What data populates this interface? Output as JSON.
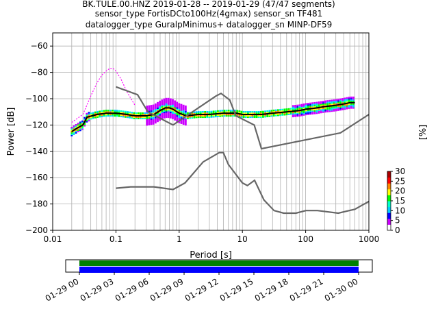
{
  "title": {
    "line1": "BK.TULE.00.HNZ   2019-01-28 -- 2019-01-29  (47/47 segments)",
    "line2": "sensor_type FortisDCto100Hz(4gmax) sensor_sn TF481",
    "line3": "datalogger_type GuralpMinimus+ datalogger_sn MINP-DF59"
  },
  "colorbar": {
    "label": "[%]",
    "ticks": [
      "0",
      "5",
      "10",
      "15",
      "20",
      "25",
      "30"
    ],
    "range": [
      0,
      30
    ],
    "colormap": [
      "#ffffff",
      "#cc00ff",
      "#0000ff",
      "#00ccff",
      "#00ffcc",
      "#00ff00",
      "#ffff00",
      "#ff8800",
      "#ff0000",
      "#aa0000"
    ]
  },
  "chart_data": [
    {
      "type": "line",
      "xlabel": "Period [s]",
      "ylabel": "Power [dB]",
      "xscale": "log",
      "xlim": [
        0.01,
        1000
      ],
      "ylim": [
        -200,
        -50
      ],
      "xticks": [
        "0.01",
        "0.1",
        "1",
        "10",
        "100",
        "1000"
      ],
      "yticks": [
        "−60",
        "−80",
        "−100",
        "−120",
        "−140",
        "−160",
        "−180",
        "−200"
      ],
      "grid": true,
      "series": [
        {
          "role": "mean",
          "color": "#000000",
          "x": [
            0.02,
            0.025,
            0.03,
            0.035,
            0.05,
            0.07,
            0.1,
            0.15,
            0.2,
            0.3,
            0.4,
            0.5,
            0.6,
            0.7,
            0.8,
            1.0,
            1.3,
            2,
            3,
            5,
            8,
            10,
            15,
            20,
            30,
            50,
            80,
            100,
            150,
            200,
            300,
            400,
            500,
            600
          ],
          "y": [
            -125,
            -122,
            -120,
            -114,
            -112,
            -111,
            -111,
            -112,
            -113,
            -113,
            -112,
            -109,
            -107,
            -107,
            -108,
            -111,
            -113,
            -112,
            -112,
            -111,
            -111,
            -112,
            -112,
            -112,
            -111,
            -110,
            -109,
            -108,
            -107,
            -106,
            -105,
            -104,
            -103,
            -103
          ]
        },
        {
          "role": "peak-envelope",
          "color": "#ff00ff",
          "x": [
            0.02,
            0.03,
            0.04,
            0.05,
            0.06,
            0.07,
            0.08,
            0.09,
            0.1,
            0.12,
            0.15,
            0.2
          ],
          "y": [
            -118,
            -112,
            -98,
            -88,
            -82,
            -79,
            -77,
            -77,
            -79,
            -85,
            -95,
            -105
          ]
        },
        {
          "role": "nhnm",
          "color": "#666666",
          "x": [
            0.1,
            0.22,
            0.32,
            0.8,
            3.8,
            4.6,
            6.3,
            7.9,
            15.4,
            20,
            354.8,
            1000
          ],
          "y": [
            -91,
            -97,
            -110,
            -120,
            -98,
            -96,
            -101,
            -113,
            -120,
            -138,
            -126,
            -112
          ]
        },
        {
          "role": "nlnm",
          "color": "#666666",
          "x": [
            0.1,
            0.17,
            0.4,
            0.8,
            1.24,
            2.4,
            4.3,
            5.0,
            6.0,
            10,
            12,
            15.6,
            21.9,
            31.6,
            45,
            70,
            101,
            154,
            328,
            600,
            1000
          ],
          "y": [
            -168,
            -167,
            -167,
            -169,
            -164,
            -148,
            -141,
            -141,
            -150,
            -164,
            -166,
            -162,
            -177,
            -185,
            -187,
            -187,
            -185,
            -185,
            -187,
            -184,
            -178
          ]
        }
      ]
    },
    {
      "type": "timeline",
      "xticks": [
        "01-29 00",
        "01-29 03",
        "01-29 06",
        "01-29 09",
        "01-29 12",
        "01-29 15",
        "01-29 18",
        "01-29 21",
        "01-30 00"
      ],
      "xlim": [
        "01-28 22:30",
        "01-30 01:00"
      ],
      "coverage": {
        "start": "01-29 00",
        "end": "01-30 00"
      },
      "bands": [
        {
          "color": "#008000"
        },
        {
          "color": "#0000ff"
        }
      ]
    }
  ]
}
